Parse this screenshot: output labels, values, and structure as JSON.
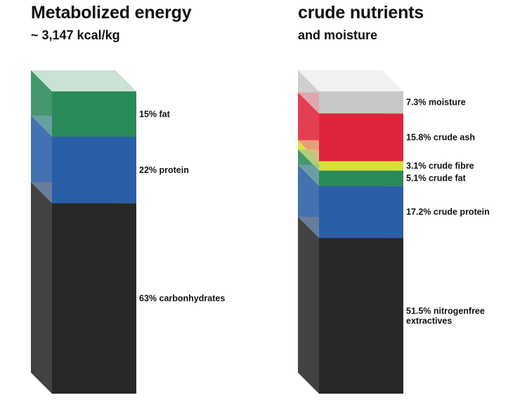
{
  "chart_data": [
    {
      "type": "stacked-bar",
      "title": "Metabolized energy",
      "subtitle": "~ 3,147 kcal/kg",
      "segments": [
        {
          "name": "carbonhydrates",
          "label": "63% carbonhydrates",
          "value": 63,
          "color": "#282828"
        },
        {
          "name": "protein",
          "label": "22% protein",
          "value": 22,
          "color": "#2a5ea6"
        },
        {
          "name": "fat",
          "label": "15% fat",
          "value": 15,
          "color": "#2a8a5a"
        }
      ]
    },
    {
      "type": "stacked-bar",
      "title": "crude nutrients",
      "subtitle": "and moisture",
      "segments": [
        {
          "name": "nitrogenfree-extractives",
          "label": "51.5% nitrogenfree extractives",
          "value": 51.5,
          "color": "#282828"
        },
        {
          "name": "crude-protein",
          "label": "17.2% crude protein",
          "value": 17.2,
          "color": "#2a5ea6"
        },
        {
          "name": "crude-fat",
          "label": "5.1% crude fat",
          "value": 5.1,
          "color": "#2a8a5a"
        },
        {
          "name": "crude-fibre",
          "label": "3.1% crude fibre",
          "value": 3.1,
          "color": "#d8e034"
        },
        {
          "name": "crude-ash",
          "label": "15.8% crude ash",
          "value": 15.8,
          "color": "#e0243c"
        },
        {
          "name": "moisture",
          "label": "7.3% moisture",
          "value": 7.3,
          "color": "#c8c8c8"
        }
      ]
    }
  ]
}
